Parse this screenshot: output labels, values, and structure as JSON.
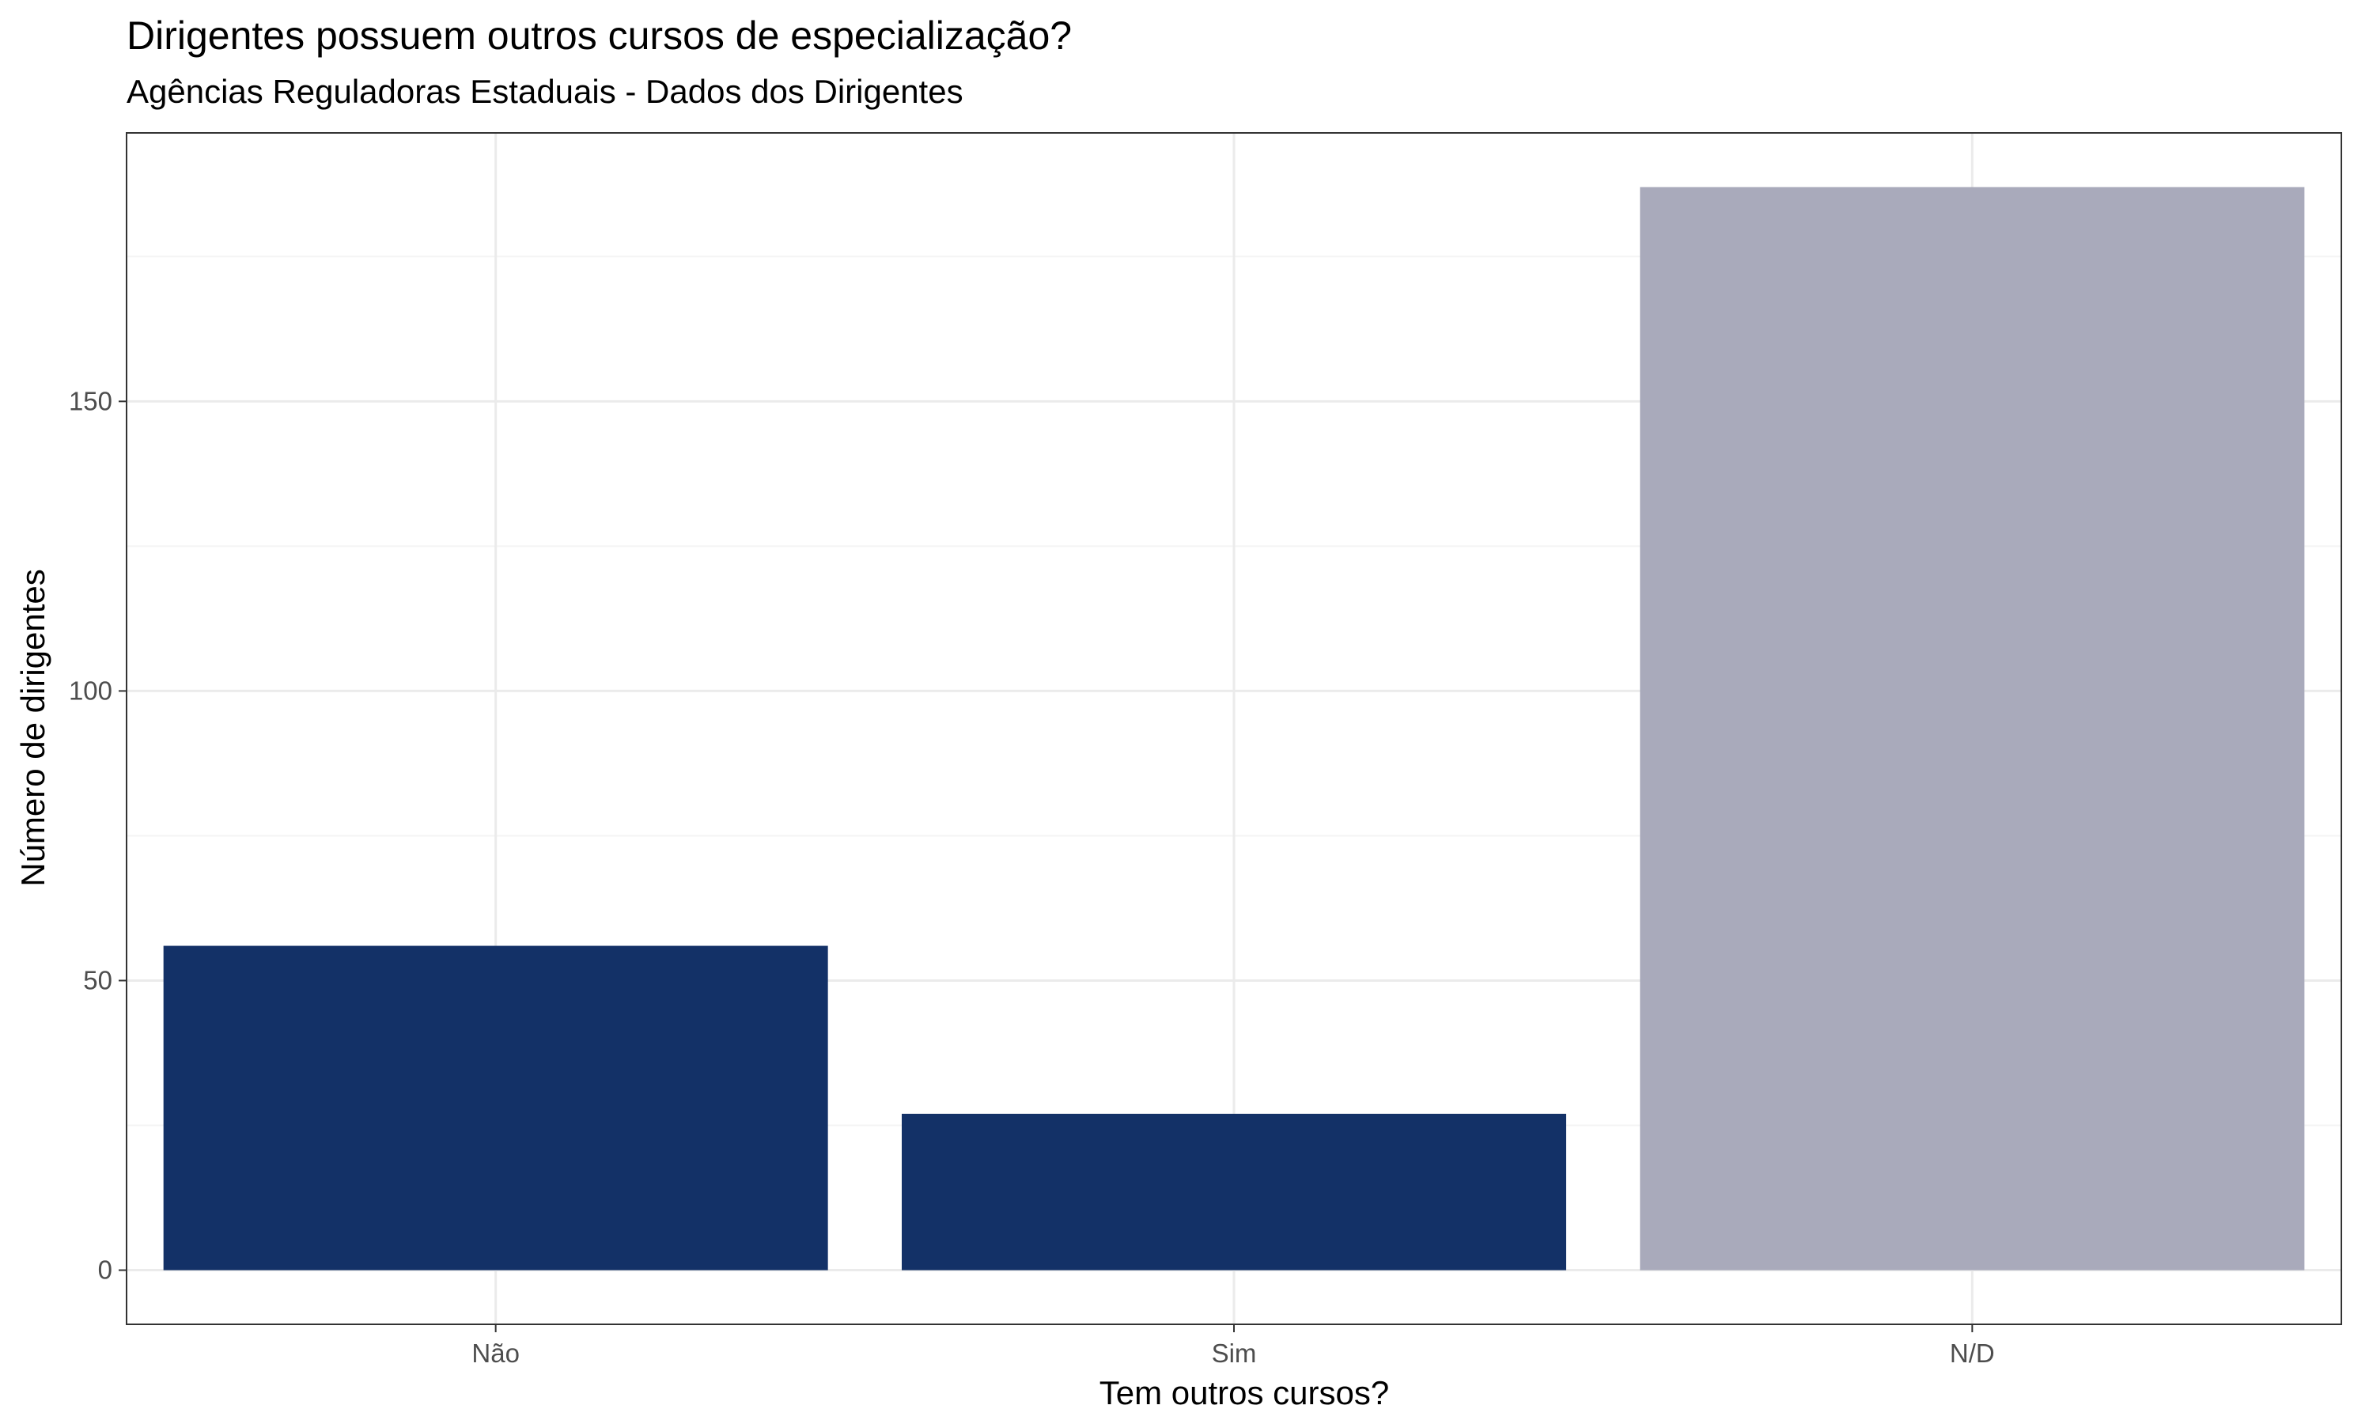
{
  "chart_data": {
    "type": "bar",
    "title": "Dirigentes possuem outros cursos de especialização?",
    "subtitle": "Agências Reguladoras Estaduais - Dados dos Dirigentes",
    "xlabel": "Tem outros cursos?",
    "ylabel": "Número de dirigentes",
    "categories": [
      "Não",
      "Sim",
      "N/D"
    ],
    "values": [
      56,
      27,
      187
    ],
    "bar_colors": [
      "#133167",
      "#133167",
      "#a9aabb"
    ],
    "ylim": [
      -9.35,
      196.35
    ],
    "y_ticks": [
      0,
      50,
      100,
      150
    ],
    "y_minor_ticks": [
      25,
      75,
      125,
      175
    ],
    "grid": true,
    "legend": "none",
    "colors": {
      "panel_border": "#333333",
      "grid_major": "#ebebeb",
      "grid_minor": "#f4f4f4",
      "tick_text": "#4d4d4d"
    }
  }
}
